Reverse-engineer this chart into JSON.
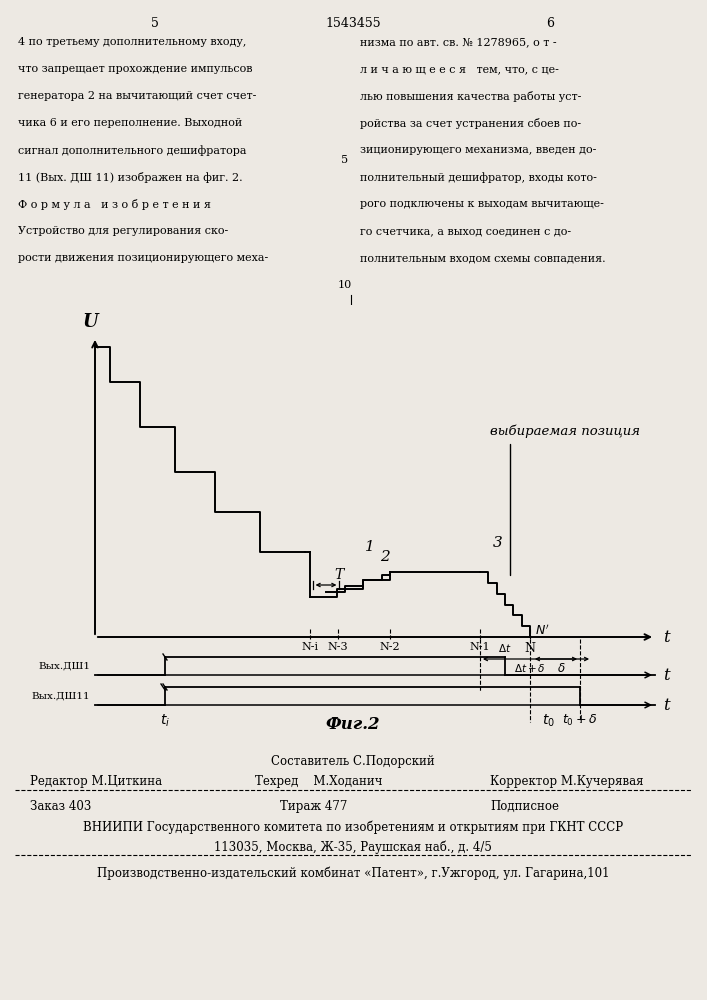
{
  "bg_color": "#ede9e3",
  "header_left_lines": [
    "4 по третьему дополнительному входу,",
    "что запрещает прохождение импульсов",
    "генератора 2 на вычитающий счет счет-",
    "чика 6 и его переполнение. Выходной",
    "сигнал дополнительного дешифратора",
    "11 (Вых. ДШ 11) изображен на фиг. 2.",
    "Ф о р м у л а   и з о б р е т е н и я",
    "Устройство для регулирования ско-",
    "рости движения позиционирующего меха-"
  ],
  "header_right_lines": [
    "низма по авт. св. № 1278965, о т -",
    "л и ч а ю щ е е с я   тем, что, с це-",
    "лью повышения качества работы уст-",
    "ройства за счет устранения сбоев по-",
    "зиционирующего механизма, введен до-",
    "полнительный дешифратор, входы кото-",
    "рого подключены к выходам вычитающе-",
    "го счетчика, а выход соединен с до-",
    "полнительным входом схемы совпадения."
  ],
  "fig_label": "Фиг.2",
  "footer_staff": "Составитель С.Подорский",
  "footer_editor": "Редактор М.Циткина",
  "footer_tech": "Техред    М.Ходанич",
  "footer_corrector": "Корректор М.Кучерявая",
  "footer_order": "Заказ 403",
  "footer_tirazh": "Тираж 477",
  "footer_podpisnoe": "Подписное",
  "footer_vniiipi": "ВНИИПИ Государственного комитета по изобретениям и открытиям при ГКНТ СССР",
  "footer_address": "113035, Москва, Ж-35, Раушская наб., д. 4/5",
  "footer_patent": "Производственно-издательский комбинат «Патент», г.Ужгород, ул. Гагарина,101"
}
